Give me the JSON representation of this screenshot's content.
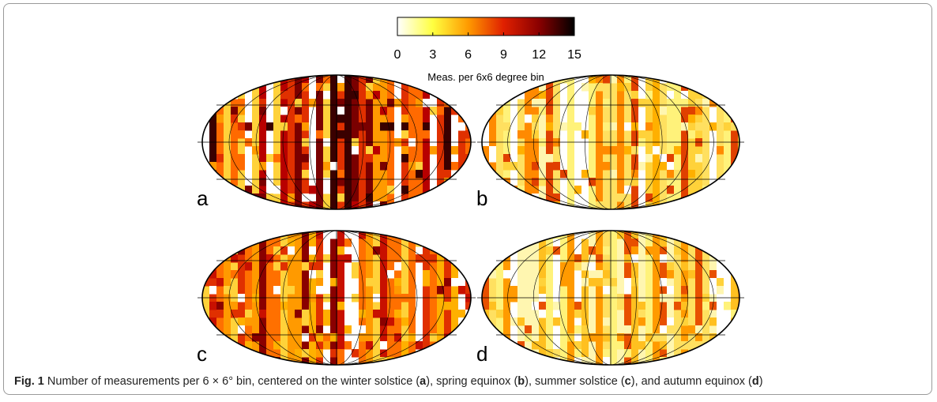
{
  "colorbar": {
    "label": "Meas. per 6x6 degree bin",
    "lim": [
      0,
      15
    ],
    "ticks": [
      0,
      3,
      6,
      9,
      12,
      15
    ]
  },
  "panels": [
    {
      "label": "a"
    },
    {
      "label": "b"
    },
    {
      "label": "c"
    },
    {
      "label": "d"
    }
  ],
  "caption": {
    "prefix": "Fig. 1",
    "parts": [
      "Number of measurements per 6 × 6° bin, centered on the winter solstice (",
      "a",
      "), spring equinox (",
      "b",
      "), summer solstice (",
      "c",
      "), and autumn equinox (",
      "d",
      ")"
    ]
  }
}
